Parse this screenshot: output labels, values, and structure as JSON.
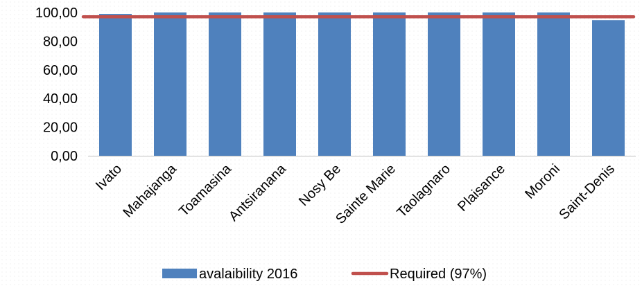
{
  "chart_data": {
    "type": "bar",
    "categories": [
      "Ivato",
      "Mahajanga",
      "Toamasina",
      "Antsiranana",
      "Nosy Be",
      "Sainte Marie",
      "Taolagnaro",
      "Plaisance",
      "Moroni",
      "Saint-Denis"
    ],
    "series": [
      {
        "name": "avalaibility 2016",
        "type": "bar",
        "color": "#4f81bd",
        "values": [
          99.0,
          100.0,
          100.0,
          100.0,
          100.0,
          100.0,
          100.0,
          100.0,
          100.0,
          94.6
        ]
      },
      {
        "name": "Required (97%)",
        "type": "line",
        "color": "#c0504d",
        "values": [
          97,
          97,
          97,
          97,
          97,
          97,
          97,
          97,
          97,
          97
        ]
      }
    ],
    "title": "",
    "xlabel": "",
    "ylabel": "",
    "ylim": [
      0,
      100
    ],
    "yticks": [
      "0,00",
      "20,00",
      "40,00",
      "60,00",
      "80,00",
      "100,00"
    ],
    "ytick_values": [
      0,
      20,
      40,
      60,
      80,
      100
    ],
    "grid": false,
    "legend_position": "bottom"
  }
}
